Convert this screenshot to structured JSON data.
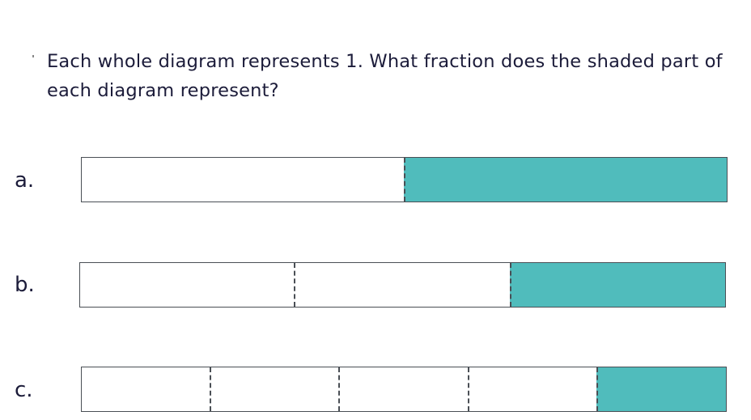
{
  "question": "Each whole diagram represents 1. What fraction does the shaded part of each diagram represent?",
  "shade_color": "#50bcbc",
  "diagrams": [
    {
      "label": "a.",
      "parts": 2,
      "shaded": 1
    },
    {
      "label": "b.",
      "parts": 3,
      "shaded": 1
    },
    {
      "label": "c.",
      "parts": 5,
      "shaded": 1
    }
  ]
}
